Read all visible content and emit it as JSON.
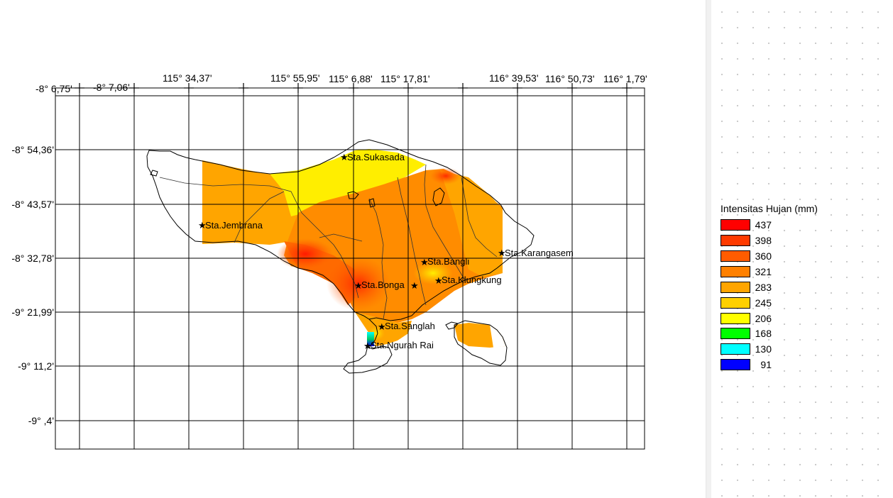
{
  "map": {
    "x_ticks": [
      "-8° 6,75'",
      "-8° 7,06'",
      "115° 34,37'",
      "115° 55,95'",
      "115° 6,88'",
      "115° 17,81'",
      "116° 39,53'",
      "116° 50,73'",
      "116° 1,79'"
    ],
    "y_ticks": [
      "-8° 54,36'",
      "-8° 43,57'",
      "-8° 32,78'",
      "-9° 21,99'",
      "-9° 11,2'",
      "-9° ,4'"
    ],
    "stations": [
      {
        "name": "Sta.Sukasada"
      },
      {
        "name": "Sta.Jembrana"
      },
      {
        "name": "Sta.Karangasem"
      },
      {
        "name": "Sta.Bangli"
      },
      {
        "name": "Sta.Bonga"
      },
      {
        "name": "Sta.Klungkung"
      },
      {
        "name": "Sta.Sanglah"
      },
      {
        "name": "Sta.Ngurah Rai"
      }
    ]
  },
  "legend": {
    "title": "Intensitas Hujan (mm)",
    "items": [
      {
        "value": "437",
        "color": "#ff0000"
      },
      {
        "value": "398",
        "color": "#ff3a00"
      },
      {
        "value": "360",
        "color": "#ff5c00"
      },
      {
        "value": "321",
        "color": "#ff8000"
      },
      {
        "value": "283",
        "color": "#ffa500"
      },
      {
        "value": "245",
        "color": "#ffd000"
      },
      {
        "value": "206",
        "color": "#ffff00"
      },
      {
        "value": "168",
        "color": "#00ff00"
      },
      {
        "value": "130",
        "color": "#00ffff"
      },
      {
        "value": "91",
        "color": "#0000ff"
      }
    ]
  }
}
